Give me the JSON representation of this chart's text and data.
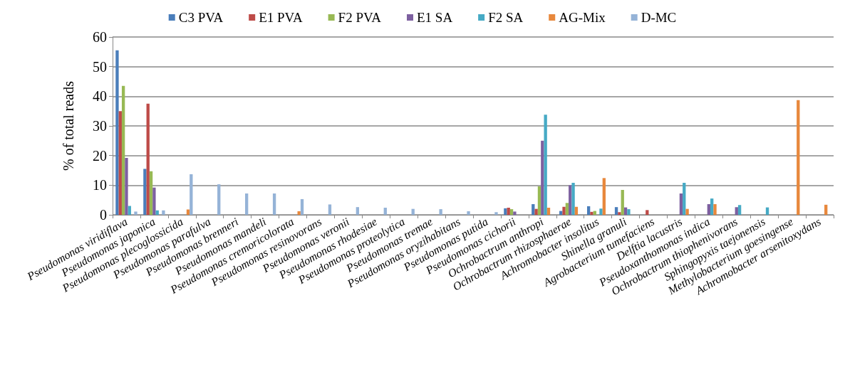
{
  "chart_data": {
    "type": "bar",
    "ylabel": "% of total reads",
    "categories": [
      "Pseudomonas viridiflava",
      "Pseudomonas japonica",
      "Pseudomonas plecoglossicida",
      "Pseudomonas parafulva",
      "Pseudomonas brenneri",
      "Pseudomonas mandeli",
      "Pseudomonas cremoricolorata",
      "Pseudomonas resinovorans",
      "Pseudomonas veronii",
      "Pseudomonas rhodesiae",
      "Pseudomonas proteolytica",
      "Pseudomonas tremae",
      "Pseudomonas oryzihabitans",
      "Pseudomonas putida",
      "Pseudomonas cichorii",
      "Ochrobactrum anthropi",
      "Ochrobactrum rhizosphaerae",
      "Achromobacter insolitus",
      "Shinella granuli",
      "Agrobacterium tumefaciens",
      "Delftia lacustris",
      "Pseudoxanthomonas indica",
      "Ochrobactrum thiophenivorans",
      "Sphingopyxis taejonensis",
      "Methylobacterium goesingense",
      "Achromobacter arsenitoxydans"
    ],
    "series": [
      {
        "name": "C3 PVA",
        "color": "#4a7ebb",
        "values": [
          55.5,
          15.5,
          null,
          null,
          null,
          null,
          null,
          null,
          null,
          null,
          null,
          null,
          null,
          null,
          2.2,
          3.6,
          1.3,
          2.9,
          2.6,
          null,
          null,
          null,
          null,
          null,
          null,
          null
        ]
      },
      {
        "name": "E1 PVA",
        "color": "#be4b48",
        "values": [
          35,
          37.5,
          null,
          null,
          null,
          null,
          null,
          null,
          null,
          null,
          null,
          null,
          null,
          null,
          2.4,
          2.0,
          2.7,
          1.0,
          0.9,
          1.6,
          null,
          null,
          null,
          null,
          null,
          null
        ]
      },
      {
        "name": "F2 PVA",
        "color": "#98b954",
        "values": [
          43.5,
          14.7,
          null,
          null,
          null,
          null,
          null,
          null,
          null,
          null,
          null,
          null,
          null,
          null,
          1.9,
          9.6,
          4.0,
          1.3,
          8.4,
          null,
          null,
          null,
          null,
          null,
          null,
          null
        ]
      },
      {
        "name": "E1 SA",
        "color": "#7d60a0",
        "values": [
          19.2,
          9.2,
          null,
          null,
          null,
          null,
          null,
          null,
          null,
          null,
          null,
          null,
          null,
          null,
          1.1,
          25,
          10,
          null,
          2.5,
          null,
          7.2,
          3.6,
          2.6,
          null,
          null,
          null
        ]
      },
      {
        "name": "F2 SA",
        "color": "#46aac5",
        "values": [
          3,
          1.5,
          null,
          null,
          null,
          null,
          null,
          null,
          null,
          null,
          null,
          null,
          null,
          null,
          null,
          33.8,
          10.8,
          2.1,
          1.9,
          null,
          10.8,
          5.5,
          3.3,
          2.5,
          null,
          null
        ]
      },
      {
        "name": "AG-Mix",
        "color": "#e8883c",
        "values": [
          null,
          null,
          1.8,
          null,
          null,
          null,
          1.2,
          null,
          null,
          null,
          null,
          null,
          null,
          null,
          null,
          2.4,
          2.7,
          12.4,
          null,
          null,
          2.0,
          3.6,
          null,
          null,
          38.7,
          3.4
        ]
      },
      {
        "name": "D-MC",
        "color": "#95b3d7",
        "values": [
          1.1,
          1.5,
          13.7,
          10.3,
          7.2,
          7.2,
          5.3,
          3.5,
          2.6,
          2.4,
          2.0,
          1.9,
          1.2,
          0.9,
          null,
          null,
          null,
          null,
          null,
          null,
          null,
          null,
          null,
          null,
          null,
          null
        ]
      }
    ],
    "ylim": [
      0,
      60
    ],
    "yticks": [
      0,
      10,
      20,
      30,
      40,
      50,
      60
    ],
    "grid": "y",
    "legend": "top"
  }
}
